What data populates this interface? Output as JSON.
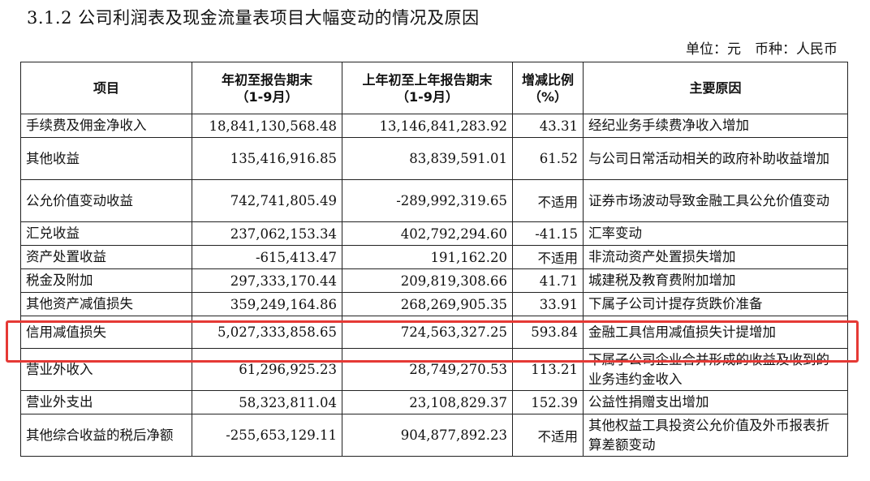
{
  "title": "3.1.2 公司利润表及现金流量表项目大幅变动的情况及原因",
  "unit_line": "单位：元　币种：人民币",
  "table": {
    "headers": {
      "item": "项目",
      "current": "年初至报告期末\n（1-9月）",
      "prior": "上年初至上年报告期末\n（1-9月）",
      "change": "增减比例\n（%）",
      "reason": "主要原因"
    },
    "rows": [
      {
        "item": "手续费及佣金净收入",
        "current": "18,841,130,568.48",
        "prior": "13,146,841,283.92",
        "change": "43.31",
        "reason": "经纪业务手续费净收入增加"
      },
      {
        "item": "其他收益",
        "current": "135,416,916.85",
        "prior": "83,839,591.01",
        "change": "61.52",
        "reason": "与公司日常活动相关的政府补助收益增加"
      },
      {
        "item": "公允价值变动收益",
        "current": "742,741,805.49",
        "prior": "-289,992,319.65",
        "change": "不适用",
        "reason": "证券市场波动导致金融工具公允价值变动"
      },
      {
        "item": "汇兑收益",
        "current": "237,062,153.34",
        "prior": "402,792,294.60",
        "change": "-41.15",
        "reason": "汇率变动"
      },
      {
        "item": "资产处置收益",
        "current": "-615,413.47",
        "prior": "191,162.20",
        "change": "不适用",
        "reason": "非流动资产处置损失增加"
      },
      {
        "item": "税金及附加",
        "current": "297,333,170.44",
        "prior": "209,819,308.66",
        "change": "41.71",
        "reason": "城建税及教育费附加增加"
      },
      {
        "item": "其他资产减值损失",
        "current": "359,249,164.86",
        "prior": "268,269,905.35",
        "change": "33.91",
        "reason": "下属子公司计提存货跌价准备"
      },
      {
        "item": "信用减值损失",
        "current": "5,027,333,858.65",
        "prior": "724,563,327.25",
        "change": "593.84",
        "reason": "金融工具信用减值损失计提增加"
      },
      {
        "item": "营业外收入",
        "current": "61,296,925.23",
        "prior": "28,749,270.53",
        "change": "113.21",
        "reason": "下属子公司企业合并形成的收益及收到的业务违约金收入"
      },
      {
        "item": "营业外支出",
        "current": "58,323,811.04",
        "prior": "23,108,829.37",
        "change": "152.39",
        "reason": "公益性捐赠支出增加"
      },
      {
        "item": "其他综合收益的税后净额",
        "current": "-255,653,129.11",
        "prior": "904,877,892.23",
        "change": "不适用",
        "reason": "其他权益工具投资公允价值及外币报表折算差额变动"
      }
    ]
  },
  "highlight_color": "#e53935"
}
